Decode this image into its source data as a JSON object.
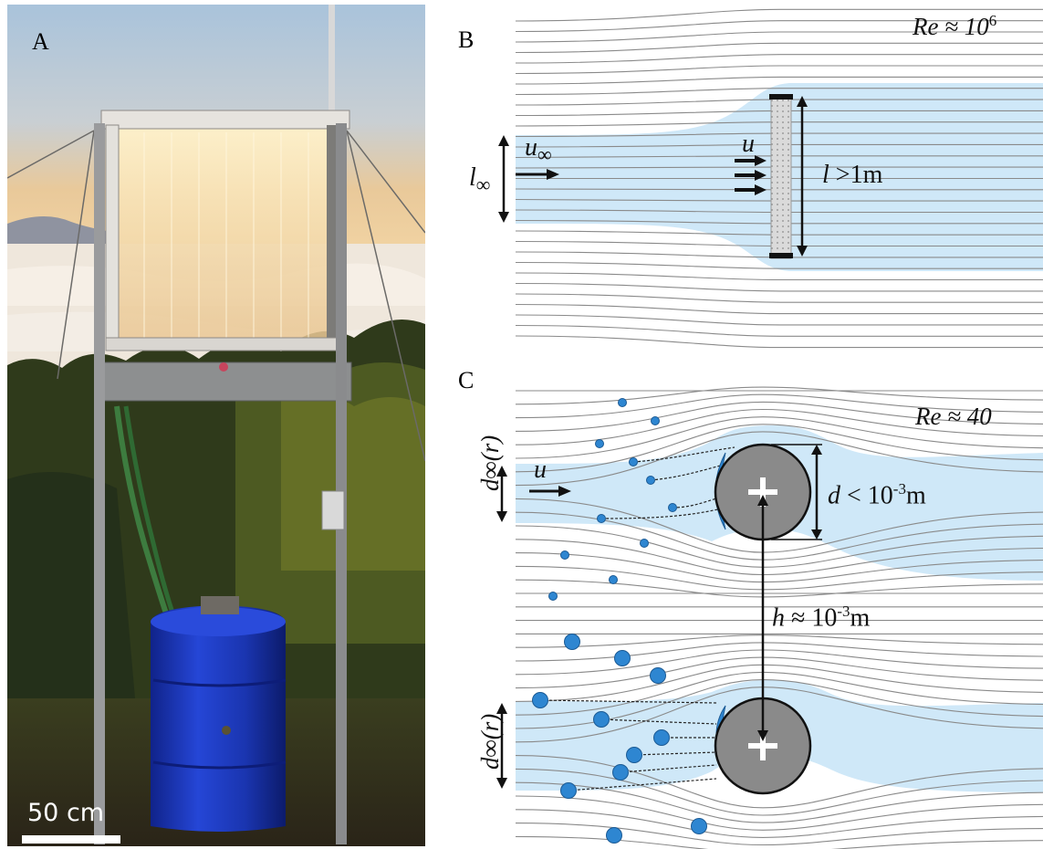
{
  "panel_a": {
    "letter": "A",
    "scale_label": "50 cm"
  },
  "panel_b": {
    "letter": "B",
    "reynolds_label": "Re ≈ 10",
    "reynolds_exp": "6",
    "inflow_velocity": "u",
    "inflow_velocity_sub": "∞",
    "inflow_width": "l",
    "inflow_width_sub": "∞",
    "mesh_velocity": "u",
    "mesh_length_sym": "l",
    "mesh_length_rest": " >1m"
  },
  "panel_c": {
    "letter": "C",
    "reynolds_label": "Re ≈ 40",
    "velocity": "u",
    "capture_width_top": "d∞(r)",
    "capture_width_bottom": "d∞(r)",
    "diameter_sym": "d",
    "diameter_rest": " < 10",
    "diameter_exp": "-3",
    "diameter_unit": "m",
    "spacing_sym": "h",
    "spacing_rest": " ≈ 10",
    "spacing_exp": "-3",
    "spacing_unit": "m"
  },
  "colors": {
    "flow_fill": "#cfe8f8",
    "streamline": "#8a8a8a",
    "droplet": "#2e86d1",
    "wire": "#8c8c8c",
    "barrel": "#1f3fc4"
  }
}
